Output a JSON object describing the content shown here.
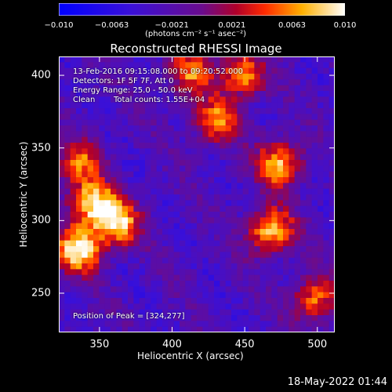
{
  "colorbar": {
    "ticks": [
      "−0.010",
      "−0.0063",
      "−0.0021",
      "0.0021",
      "0.0063",
      "0.010"
    ],
    "tick_values": [
      -0.01,
      -0.0063,
      -0.0021,
      0.0021,
      0.0063,
      0.01
    ],
    "range": [
      -0.01,
      0.01
    ],
    "unit": "(photons cm⁻² s⁻¹ asec⁻²)"
  },
  "chart_data": {
    "type": "heatmap",
    "title": "Reconstructed RHESSI Image",
    "xlabel": "Heliocentric X (arcsec)",
    "ylabel": "Heliocentric Y (arcsec)",
    "xlim": [
      322,
      512
    ],
    "ylim": [
      223,
      413
    ],
    "xticks": [
      350,
      400,
      450,
      500
    ],
    "yticks": [
      250,
      300,
      350,
      400
    ],
    "colormap": "rhessi-blue-purple-red-yellow-white",
    "hot_spots": [
      {
        "x": 336,
        "y": 280,
        "value": 0.0095
      },
      {
        "x": 345,
        "y": 312,
        "value": 0.0085
      },
      {
        "x": 362,
        "y": 298,
        "value": 0.008
      },
      {
        "x": 468,
        "y": 293,
        "value": 0.0085
      },
      {
        "x": 474,
        "y": 339,
        "value": 0.008
      },
      {
        "x": 448,
        "y": 400,
        "value": 0.007
      },
      {
        "x": 430,
        "y": 368,
        "value": 0.006
      },
      {
        "x": 335,
        "y": 340,
        "value": 0.005
      },
      {
        "x": 498,
        "y": 245,
        "value": 0.006
      },
      {
        "x": 412,
        "y": 402,
        "value": 0.005
      }
    ],
    "annotations": {
      "time": "13-Feb-2016 09:15:08.000 to 09:20:52.000",
      "detectors": "Detectors: 1F 5F 7F, Att 0",
      "energy": "Energy Range: 25.0 - 50.0 keV",
      "method": "Clean",
      "counts": "Total counts: 1.55E+04",
      "peak": "Position of Peak = [324,277]"
    },
    "peak": {
      "x": 324,
      "y": 277
    }
  },
  "footer": "18-May-2022 01:44"
}
